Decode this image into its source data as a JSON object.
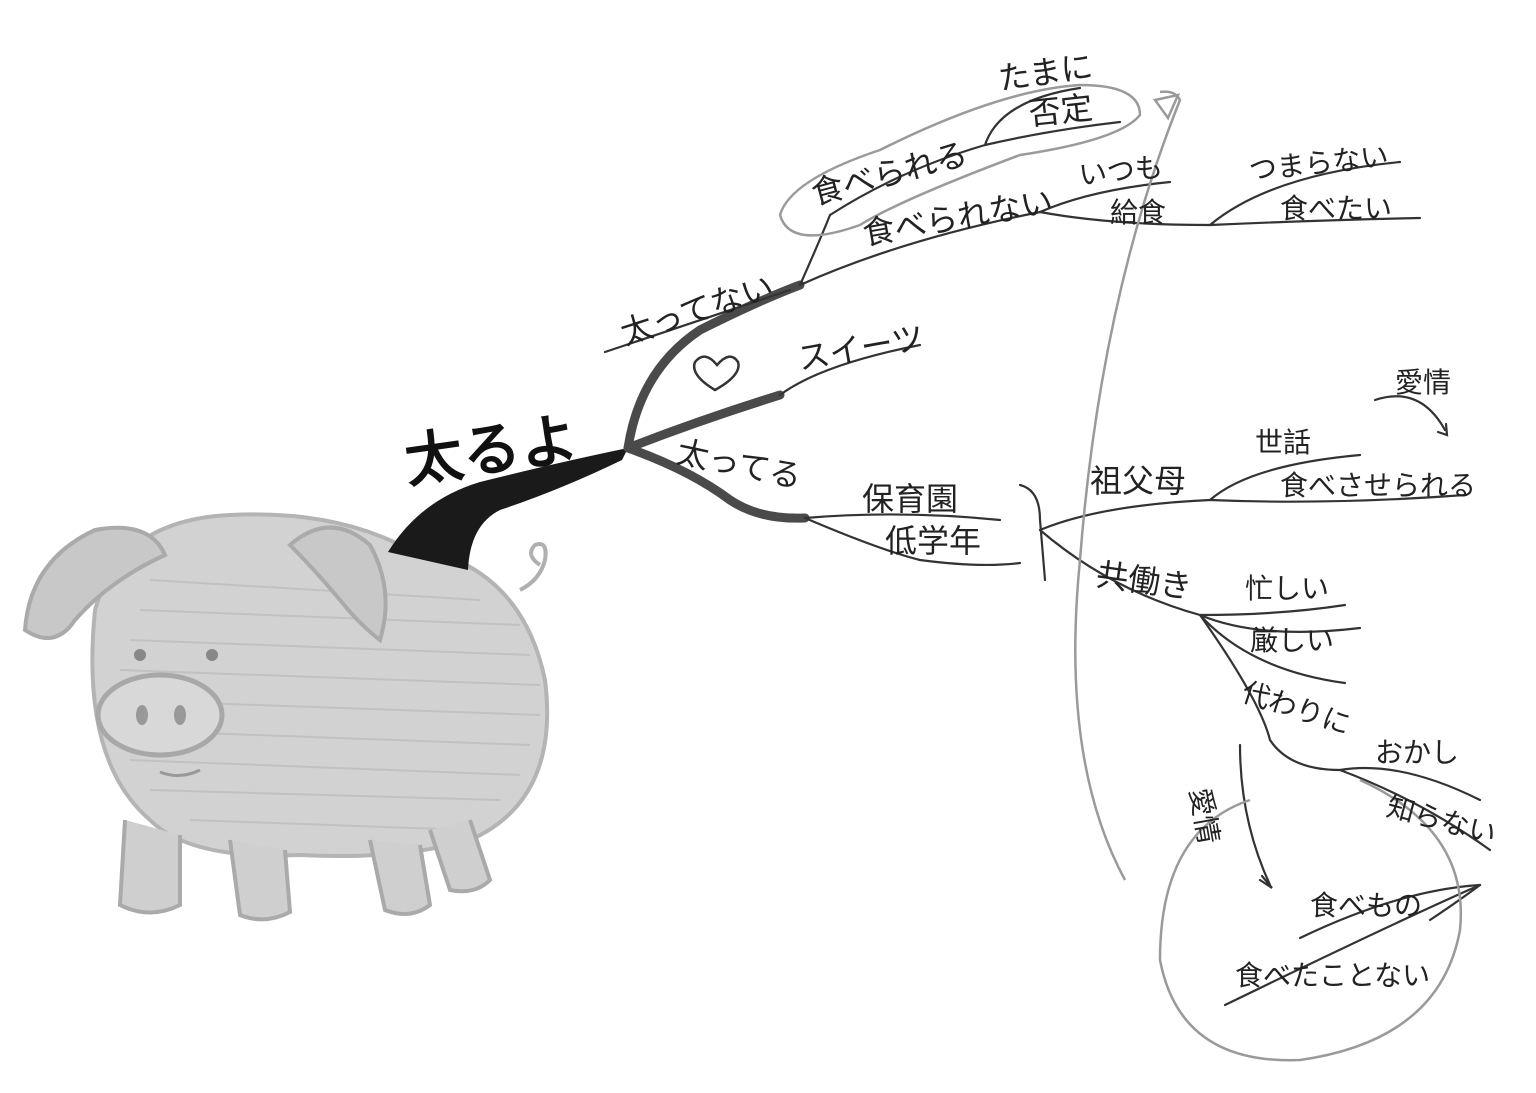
{
  "colors": {
    "ink": "#222222",
    "pencil": "#9a9a9a",
    "pig": "#c8c8c8",
    "trunk": "#1a1a1a"
  },
  "central_topic": "太るよ",
  "icons": {
    "pig": "pig-illustration",
    "heart": "heart-icon"
  },
  "nodes": {
    "futtenai": "太ってない",
    "taberareru": "食べられる",
    "tamani": "たまに",
    "hitei": "否定",
    "taberarenai": "食べられない",
    "itsumo": "いつも",
    "kyushoku": "給食",
    "tsumaranai": "つまらない",
    "tabetai": "食べたい",
    "sweets": "スイーツ",
    "futteru": "太ってる",
    "hoikuen": "保育園",
    "teigakunen": "低学年",
    "sofubo": "祖父母",
    "sewa": "世話",
    "aijo_top": "愛情",
    "tabesaserareru": "食べさせられる",
    "tomobataraki": "共働き",
    "isogashii": "忙しい",
    "kibishii": "厳しい",
    "kawarini": "代わりに",
    "okashi": "おかし",
    "shiranai": "知らない",
    "aijo_side": "愛情",
    "tabemono": "食べもの",
    "tabetakotonai": "食べたことない"
  }
}
